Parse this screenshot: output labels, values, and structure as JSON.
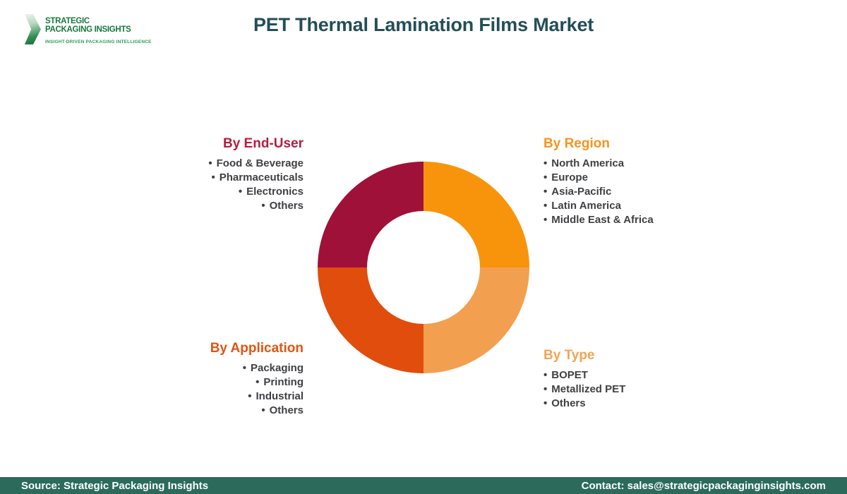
{
  "brand": {
    "name_line1": "STRATEGIC",
    "name_line2": "PACKAGING INSIGHTS",
    "tagline": "INSIGHT-DRIVEN PACKAGING INTELLIGENCE",
    "text_color_dark": "#17793F",
    "text_color_light": "#2E9B58"
  },
  "header": {
    "title": "PET Thermal Lamination Films Market",
    "title_color": "#234E57"
  },
  "segments": [
    {
      "heading": "By End-User",
      "color": "#B41E3D",
      "align": "right",
      "items": [
        "Food & Beverage",
        "Pharmaceuticals",
        "Electronics",
        "Others"
      ]
    },
    {
      "heading": "By Region",
      "color": "#F8941D",
      "align": "left",
      "items": [
        "North America",
        "Europe",
        "Asia-Pacific",
        "Latin America",
        "Middle East & Africa"
      ]
    },
    {
      "heading": "By Application",
      "color": "#E05412",
      "align": "right",
      "items": [
        "Packaging",
        "Printing",
        "Industrial",
        "Others"
      ]
    },
    {
      "heading": "By Type",
      "color": "#F2A455",
      "align": "left",
      "items": [
        "BOPET",
        "Metallized PET",
        "Others"
      ]
    }
  ],
  "chart_data": {
    "type": "pie",
    "donut": true,
    "inner_radius_ratio": 0.53,
    "title": "PET Thermal Lamination Films Market",
    "legend_position": "none",
    "slices": [
      {
        "label": "By Region",
        "value": 25,
        "color": "#F8940B",
        "quadrant": "top-right"
      },
      {
        "label": "By Type",
        "value": 25,
        "color": "#F2A04F",
        "quadrant": "bottom-right"
      },
      {
        "label": "By Application",
        "value": 25,
        "color": "#E04D0C",
        "quadrant": "bottom-left"
      },
      {
        "label": "By End-User",
        "value": 25,
        "color": "#A0113A",
        "quadrant": "top-left"
      }
    ]
  },
  "footer": {
    "source": "Source: Strategic Packaging Insights",
    "contact": "Contact: sales@strategicpackaginginsights.com",
    "background": "#2C6B5C"
  }
}
